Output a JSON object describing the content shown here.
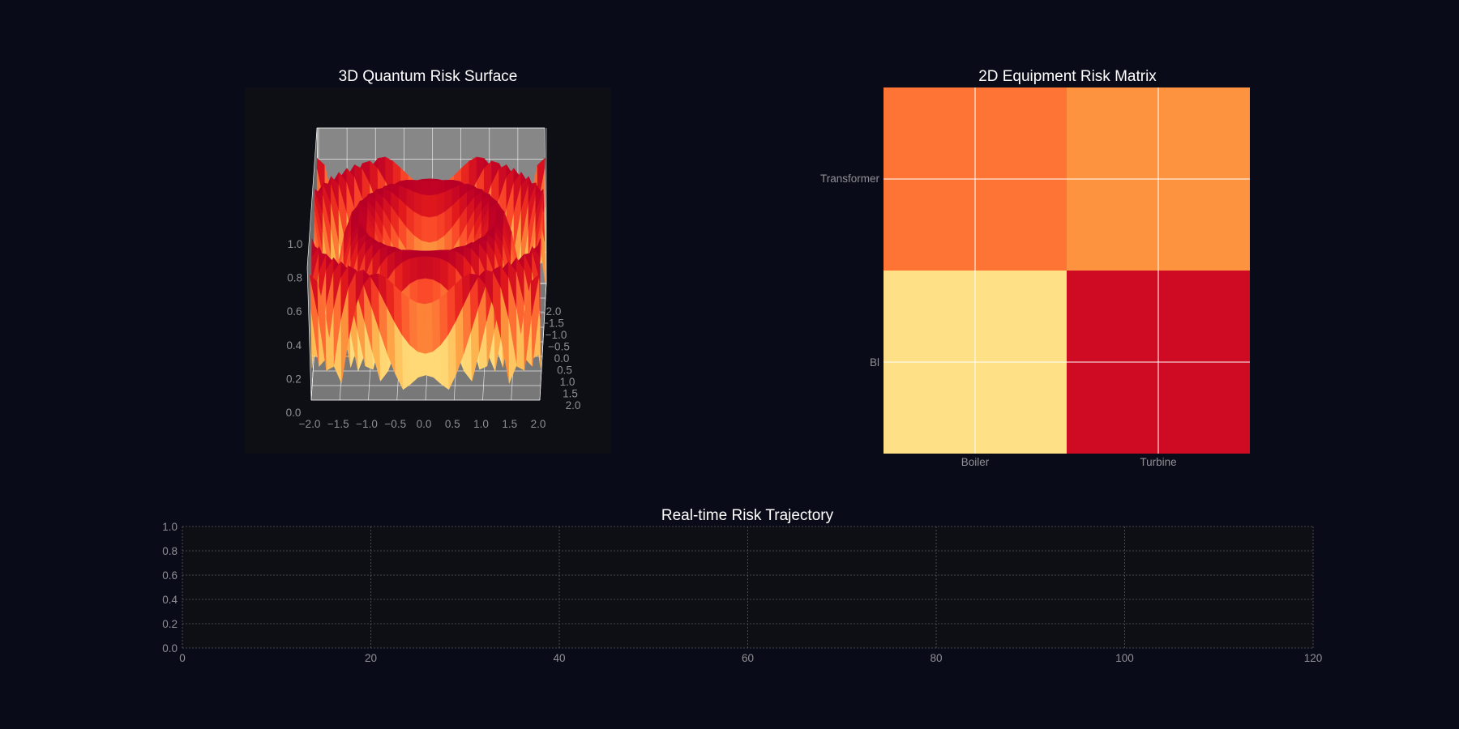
{
  "colors": {
    "page_bg": "#0a0b18",
    "panel_bg": "#0d0f14",
    "pane_face": "#878787",
    "grid": "#ffffff",
    "tick": "#8f8f94",
    "title": "#ffffff"
  },
  "chart_data": [
    {
      "id": "surface",
      "type": "surface",
      "title": "3D Quantum Risk Surface",
      "colormap": "YlOrRd",
      "x_ticks": [
        "−2.0",
        "−1.5",
        "−1.0",
        "−0.5",
        "0.0",
        "0.5",
        "1.0",
        "1.5",
        "2.0"
      ],
      "y_ticks": [
        "−2.0",
        "−1.5",
        "−1.0",
        "−0.5",
        "0.0",
        "0.5",
        "1.0",
        "1.5",
        "2.0"
      ],
      "z_ticks": [
        "0.0",
        "0.2",
        "0.4",
        "0.6",
        "0.8",
        "1.0"
      ],
      "xlim": [
        -2,
        2
      ],
      "ylim": [
        -2,
        2
      ],
      "zlim": [
        0,
        1
      ],
      "function": "z = |sin(x^2 + y^2)|"
    },
    {
      "id": "matrix",
      "type": "heatmap",
      "title": "2D Equipment Risk Matrix",
      "columns": [
        "Boiler",
        "Turbine"
      ],
      "rows": [
        "Transformer",
        "Bl"
      ],
      "values": [
        [
          0.55,
          0.48
        ],
        [
          0.2,
          0.82
        ]
      ],
      "colormap": "YlOrRd"
    },
    {
      "id": "trajectory",
      "type": "line",
      "title": "Real-time Risk Trajectory",
      "x_ticks": [
        "0",
        "20",
        "40",
        "60",
        "80",
        "100",
        "120"
      ],
      "y_ticks": [
        "0.0",
        "0.2",
        "0.4",
        "0.6",
        "0.8",
        "1.0"
      ],
      "xlim": [
        0,
        120
      ],
      "ylim": [
        0,
        1
      ],
      "series": []
    }
  ]
}
